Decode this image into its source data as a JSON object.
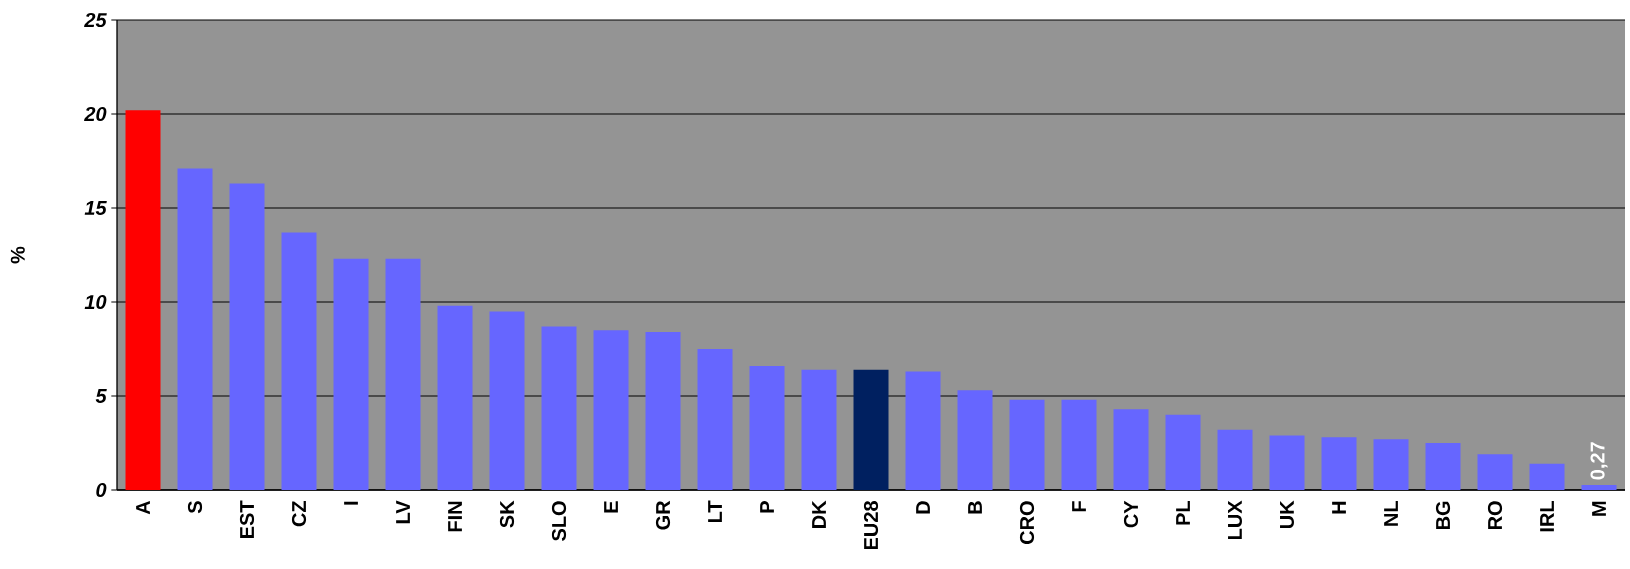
{
  "chart_data": {
    "type": "bar",
    "ylabel": "%",
    "categories": [
      "A",
      "S",
      "EST",
      "CZ",
      "I",
      "LV",
      "FIN",
      "SK",
      "SLO",
      "E",
      "GR",
      "LT",
      "P",
      "DK",
      "EU28",
      "D",
      "B",
      "CRO",
      "F",
      "CY",
      "PL",
      "LUX",
      "UK",
      "H",
      "NL",
      "BG",
      "RO",
      "IRL",
      "M"
    ],
    "values": [
      20.2,
      17.1,
      16.3,
      13.7,
      12.3,
      12.3,
      9.8,
      9.5,
      8.7,
      8.5,
      8.4,
      7.5,
      6.6,
      6.4,
      6.4,
      6.3,
      5.3,
      4.8,
      4.8,
      4.3,
      4.0,
      3.2,
      2.9,
      2.8,
      2.7,
      2.5,
      1.9,
      1.4,
      0.27
    ],
    "colors": [
      "#ff0000",
      "#6666ff",
      "#6666ff",
      "#6666ff",
      "#6666ff",
      "#6666ff",
      "#6666ff",
      "#6666ff",
      "#6666ff",
      "#6666ff",
      "#6666ff",
      "#6666ff",
      "#6666ff",
      "#6666ff",
      "#002060",
      "#6666ff",
      "#6666ff",
      "#6666ff",
      "#6666ff",
      "#6666ff",
      "#6666ff",
      "#6666ff",
      "#6666ff",
      "#6666ff",
      "#6666ff",
      "#6666ff",
      "#6666ff",
      "#6666ff",
      "#6666ff"
    ],
    "value_labels": [
      null,
      null,
      null,
      null,
      null,
      null,
      null,
      null,
      null,
      null,
      null,
      null,
      null,
      null,
      null,
      null,
      null,
      null,
      null,
      null,
      null,
      null,
      null,
      null,
      null,
      null,
      null,
      null,
      "0,27"
    ],
    "ylim": [
      0,
      25
    ],
    "yticks": [
      0,
      5,
      10,
      15,
      20,
      25
    ],
    "grid": "y"
  }
}
